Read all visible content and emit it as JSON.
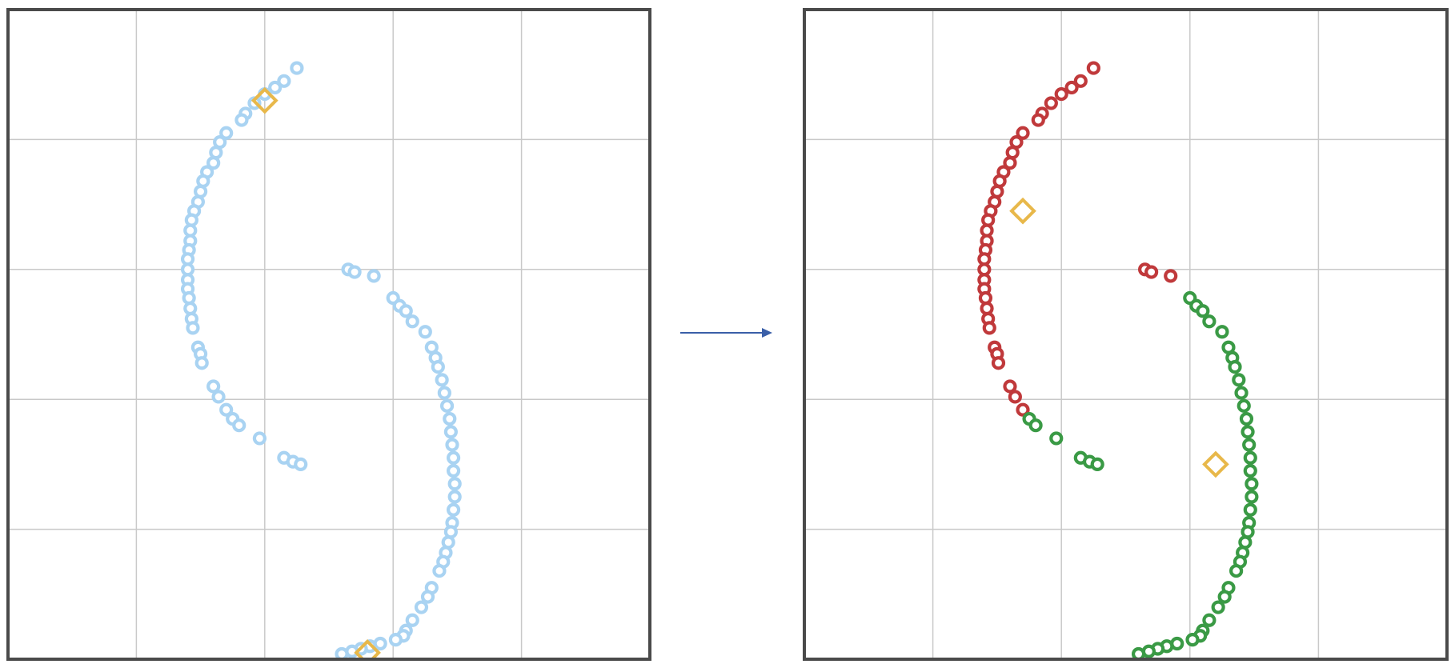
{
  "colors": {
    "frame": "#4a4a4a",
    "grid": "#c9c9c9",
    "unassigned_point": "#a9d3f2",
    "cluster_a": "#c0393b",
    "cluster_b": "#3a9a45",
    "centroid": "#e8b84a",
    "arrow": "#3a5fa8"
  },
  "chart_data": [
    {
      "type": "scatter",
      "title": "",
      "xlabel": "",
      "ylabel": "",
      "xlim": [
        0,
        5
      ],
      "ylim": [
        0,
        5
      ],
      "grid": true,
      "series": [
        {
          "role": "points",
          "color": "#a9d3f2",
          "marker": "circle",
          "x": [
            2.25,
            2.15,
            2.08,
            2.0,
            1.92,
            1.85,
            1.82,
            1.7,
            1.65,
            1.62,
            1.6,
            1.55,
            1.52,
            1.5,
            1.48,
            1.45,
            1.43,
            1.42,
            1.42,
            1.41,
            1.4,
            1.4,
            1.4,
            1.4,
            1.41,
            1.42,
            1.43,
            1.44,
            1.48,
            1.5,
            1.51,
            1.6,
            1.64,
            1.7,
            1.75,
            1.8,
            1.96,
            2.15,
            2.22,
            2.28,
            2.65,
            2.7,
            2.85,
            3.0,
            3.05,
            3.1,
            3.15,
            3.25,
            3.3,
            3.33,
            3.35,
            3.38,
            3.4,
            3.42,
            3.44,
            3.45,
            3.46,
            3.47,
            3.47,
            3.48,
            3.48,
            3.47,
            3.46,
            3.45,
            3.43,
            3.41,
            3.39,
            3.36,
            3.3,
            3.27,
            3.22,
            3.15,
            3.1,
            3.08,
            3.02,
            2.9,
            2.82,
            2.75,
            2.68,
            2.6
          ],
          "y": [
            4.55,
            4.45,
            4.4,
            4.35,
            4.28,
            4.2,
            4.15,
            4.05,
            3.98,
            3.9,
            3.82,
            3.75,
            3.68,
            3.6,
            3.52,
            3.45,
            3.38,
            3.3,
            3.22,
            3.15,
            3.08,
            3.0,
            2.92,
            2.85,
            2.78,
            2.7,
            2.62,
            2.55,
            2.4,
            2.35,
            2.28,
            2.1,
            2.02,
            1.92,
            1.85,
            1.8,
            1.7,
            1.55,
            1.52,
            1.5,
            3.0,
            2.98,
            2.95,
            2.78,
            2.72,
            2.68,
            2.6,
            2.52,
            2.4,
            2.32,
            2.25,
            2.15,
            2.05,
            1.95,
            1.85,
            1.75,
            1.65,
            1.55,
            1.45,
            1.35,
            1.25,
            1.15,
            1.05,
            0.98,
            0.9,
            0.82,
            0.75,
            0.68,
            0.55,
            0.48,
            0.4,
            0.3,
            0.22,
            0.18,
            0.15,
            0.12,
            0.1,
            0.08,
            0.06,
            0.04
          ]
        },
        {
          "role": "centroids",
          "color": "#e8b84a",
          "marker": "diamond",
          "x": [
            2.0,
            2.8
          ],
          "y": [
            4.3,
            0.05
          ]
        }
      ]
    },
    {
      "type": "scatter",
      "title": "",
      "xlabel": "",
      "ylabel": "",
      "xlim": [
        0,
        5
      ],
      "ylim": [
        0,
        5
      ],
      "grid": true,
      "series": [
        {
          "role": "cluster-a",
          "color": "#c0393b",
          "marker": "circle",
          "x": [
            2.25,
            2.15,
            2.08,
            2.0,
            1.92,
            1.85,
            1.82,
            1.7,
            1.65,
            1.62,
            1.6,
            1.55,
            1.52,
            1.5,
            1.48,
            1.45,
            1.43,
            1.42,
            1.42,
            1.41,
            1.4,
            1.4,
            1.4,
            1.4,
            1.41,
            1.42,
            1.43,
            1.44,
            1.48,
            1.5,
            1.51,
            1.6,
            1.64,
            1.7,
            2.65,
            2.7,
            2.85
          ],
          "y": [
            4.55,
            4.45,
            4.4,
            4.35,
            4.28,
            4.2,
            4.15,
            4.05,
            3.98,
            3.9,
            3.82,
            3.75,
            3.68,
            3.6,
            3.52,
            3.45,
            3.38,
            3.3,
            3.22,
            3.15,
            3.08,
            3.0,
            2.92,
            2.85,
            2.78,
            2.7,
            2.62,
            2.55,
            2.4,
            2.35,
            2.28,
            2.1,
            2.02,
            1.92,
            3.0,
            2.98,
            2.95
          ]
        },
        {
          "role": "cluster-b",
          "color": "#3a9a45",
          "marker": "circle",
          "x": [
            1.75,
            1.8,
            1.96,
            2.15,
            2.22,
            2.28,
            3.0,
            3.05,
            3.1,
            3.15,
            3.25,
            3.3,
            3.33,
            3.35,
            3.38,
            3.4,
            3.42,
            3.44,
            3.45,
            3.46,
            3.47,
            3.47,
            3.48,
            3.48,
            3.47,
            3.46,
            3.45,
            3.43,
            3.41,
            3.39,
            3.36,
            3.3,
            3.27,
            3.22,
            3.15,
            3.1,
            3.08,
            3.02,
            2.9,
            2.82,
            2.75,
            2.68,
            2.6
          ],
          "y": [
            1.85,
            1.8,
            1.7,
            1.55,
            1.52,
            1.5,
            2.78,
            2.72,
            2.68,
            2.6,
            2.52,
            2.4,
            2.32,
            2.25,
            2.15,
            2.05,
            1.95,
            1.85,
            1.75,
            1.65,
            1.55,
            1.45,
            1.35,
            1.25,
            1.15,
            1.05,
            0.98,
            0.9,
            0.82,
            0.75,
            0.68,
            0.55,
            0.48,
            0.4,
            0.3,
            0.22,
            0.18,
            0.15,
            0.12,
            0.1,
            0.08,
            0.06,
            0.04
          ]
        },
        {
          "role": "centroids",
          "color": "#e8b84a",
          "marker": "diamond",
          "x": [
            1.7,
            3.2
          ],
          "y": [
            3.45,
            1.5
          ]
        }
      ]
    }
  ]
}
